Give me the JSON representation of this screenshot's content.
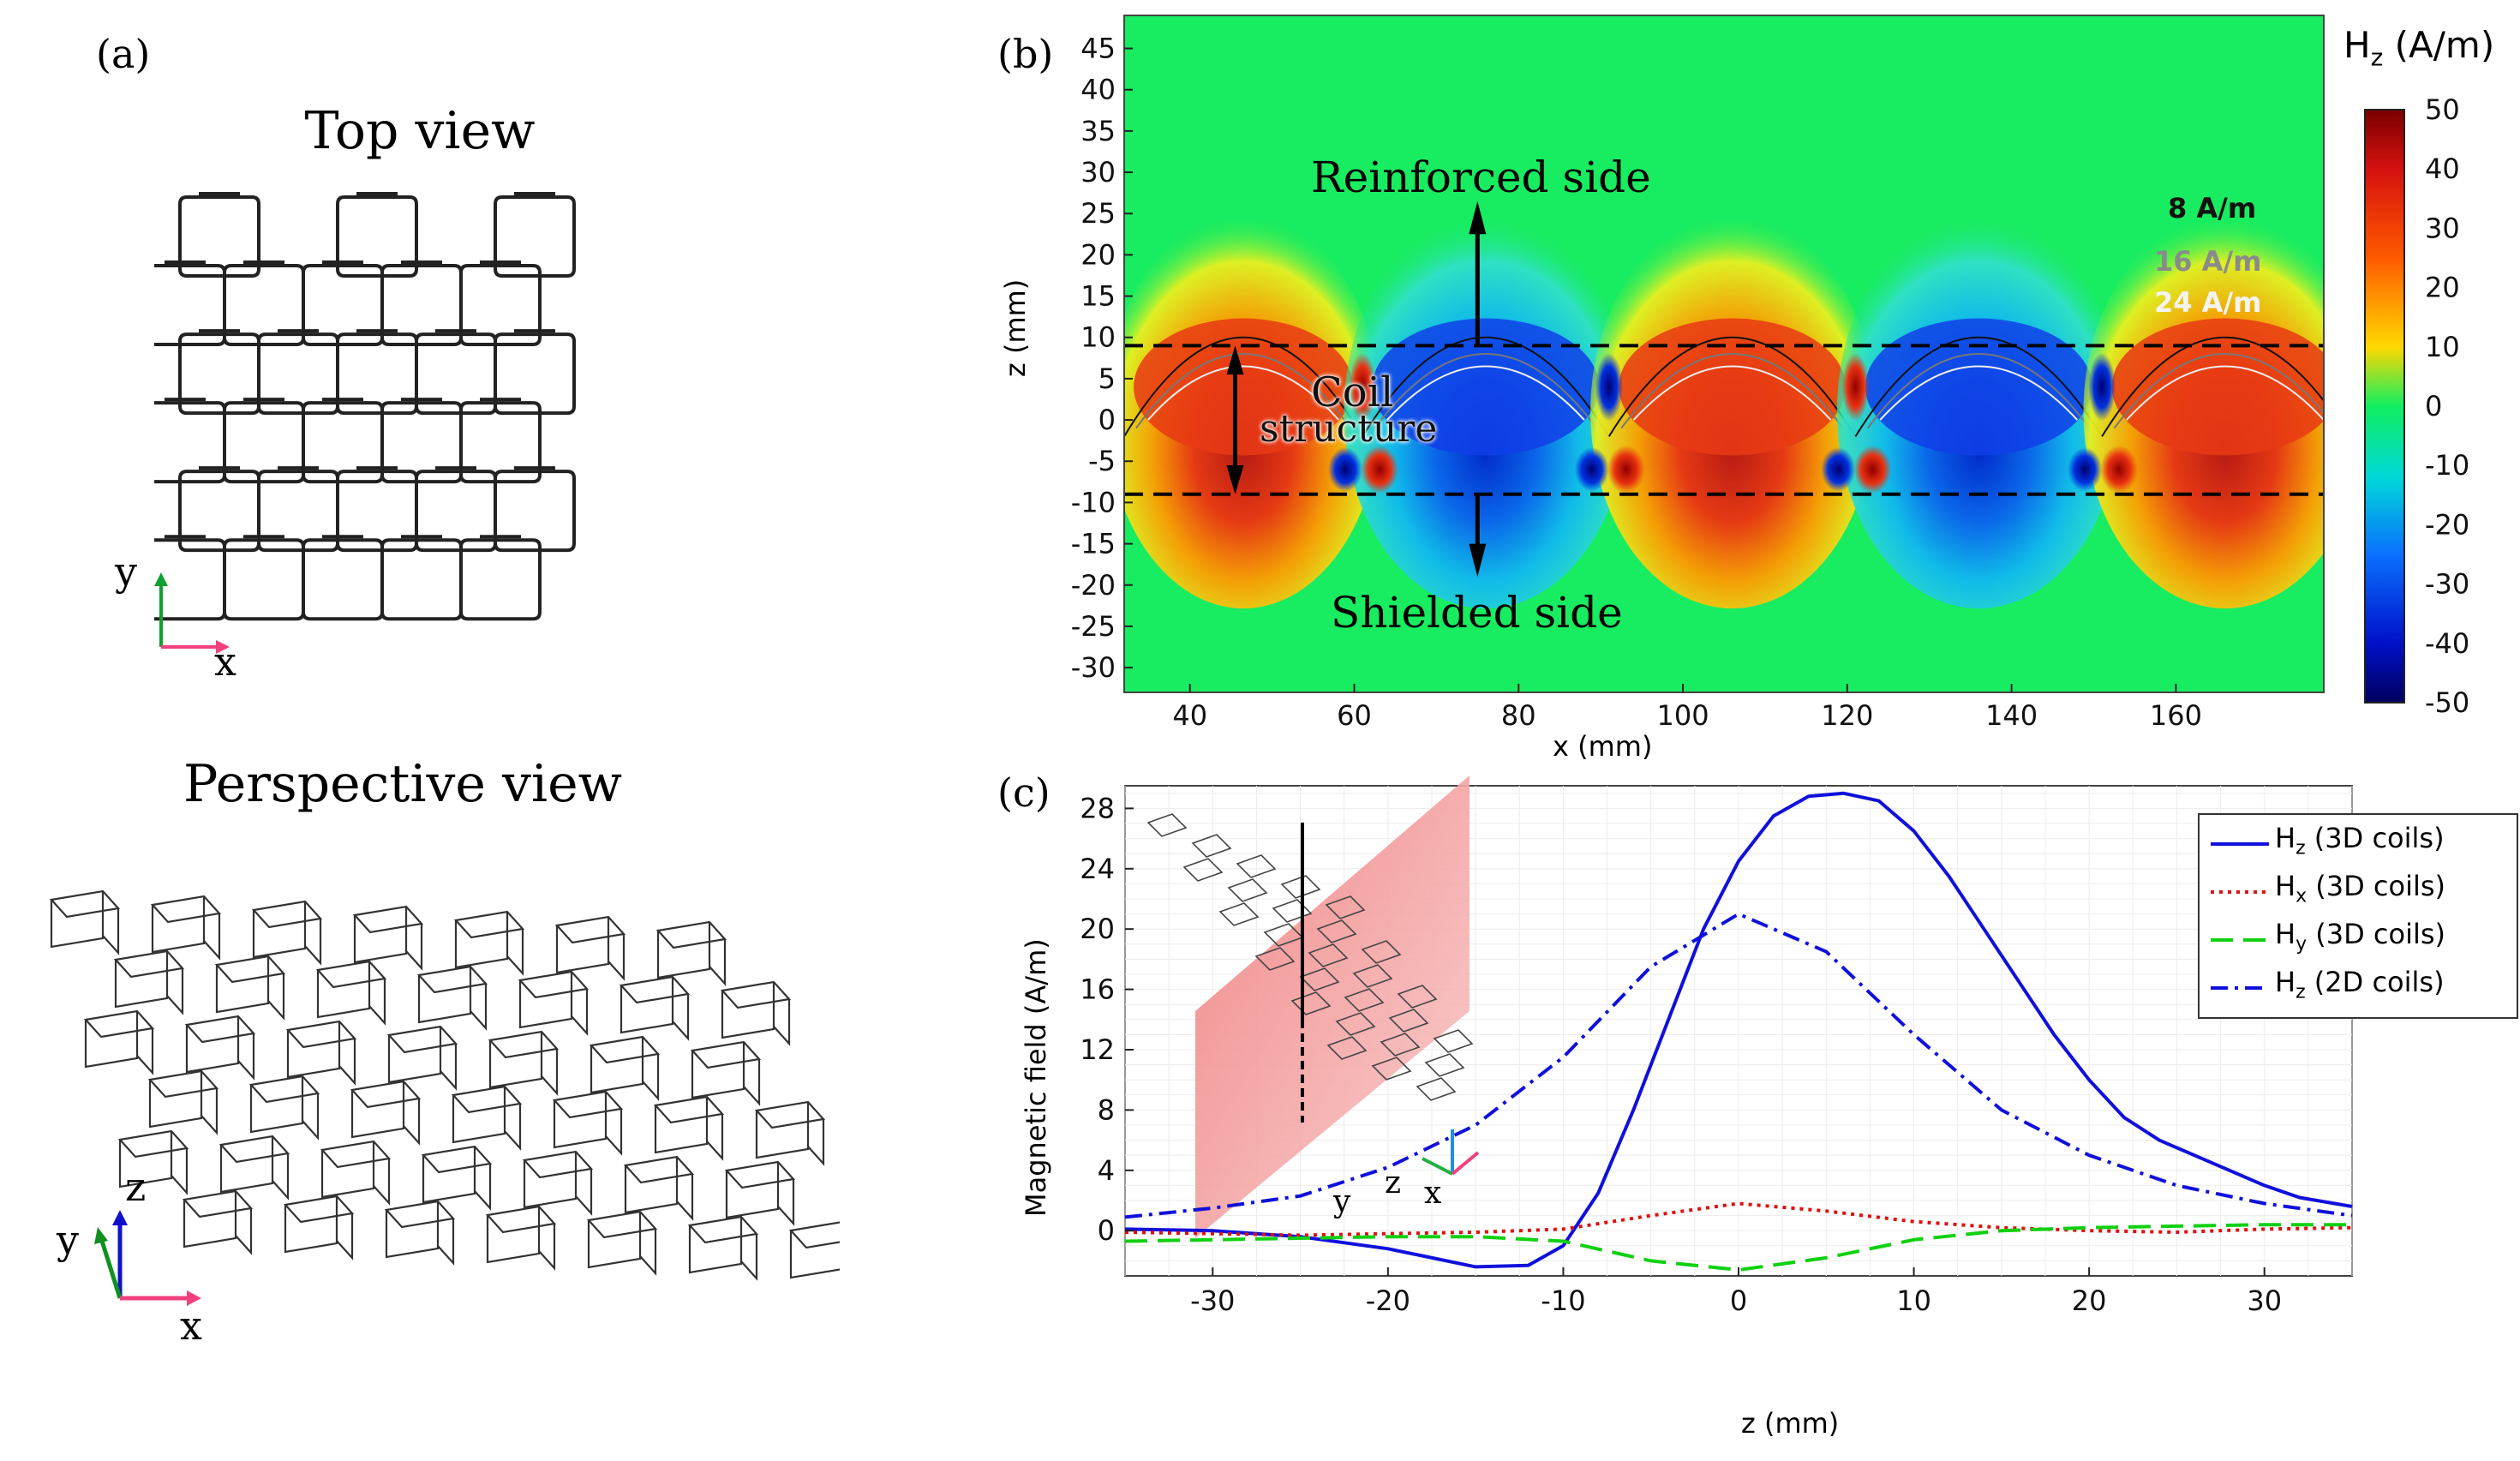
{
  "panels": {
    "a_label": "(a)",
    "b_label": "(b)",
    "c_label": "(c)",
    "top_view_title": "Top view",
    "perspective_view_title": "Perspective view",
    "axis_x": "x",
    "axis_y": "y",
    "axis_z": "z"
  },
  "colors": {
    "blue": "#1010dd",
    "red": "#e01010",
    "green": "#10d010",
    "pink": "#f04080"
  },
  "chart_data": [
    {
      "type": "heatmap",
      "title": "",
      "xlabel": "x (mm)",
      "ylabel": "z (mm)",
      "xlim": [
        32,
        178
      ],
      "ylim": [
        -33,
        49
      ],
      "xticks": [
        40,
        60,
        80,
        100,
        120,
        140,
        160
      ],
      "yticks": [
        45,
        40,
        35,
        30,
        25,
        20,
        15,
        10,
        5,
        0,
        -5,
        -10,
        -15,
        -20,
        -25,
        -30
      ],
      "colorbar": {
        "title": "H",
        "title_sub": "z",
        "title_unit": "(A/m)",
        "min": -50,
        "max": 50,
        "ticks": [
          50,
          40,
          30,
          20,
          10,
          0,
          -10,
          -20,
          -30,
          -40,
          -50
        ]
      },
      "contour_levels": [
        "8 A/m",
        "16 A/m",
        "24 A/m"
      ],
      "coil_boundaries_z": [
        9,
        -9
      ],
      "annotations": {
        "reinforced": "Reinforced side",
        "shielded": "Shielded side",
        "coil_line1": "Coil",
        "coil_line2": "structure"
      }
    },
    {
      "type": "line",
      "title": "",
      "xlabel": "z (mm)",
      "ylabel": "Magnetic field (A/m)",
      "xlim": [
        -35,
        35
      ],
      "ylim": [
        -3,
        29.5
      ],
      "xticks": [
        -30,
        -20,
        -10,
        0,
        10,
        20,
        30
      ],
      "yticks": [
        0,
        4,
        8,
        12,
        16,
        20,
        24,
        28
      ],
      "legend_position": "top-right",
      "series": [
        {
          "name": "H z (3D coils)",
          "legend_main": "H",
          "legend_sub": "z",
          "legend_rest": " (3D coils)",
          "color": "#1010dd",
          "style": "solid",
          "x": [
            -35,
            -30,
            -25,
            -20,
            -15,
            -12,
            -10,
            -8,
            -6,
            -4,
            -2,
            0,
            2,
            4,
            6,
            8,
            10,
            12,
            14,
            16,
            18,
            20,
            22,
            24,
            26,
            28,
            30,
            32,
            35
          ],
          "y": [
            0.1,
            0.0,
            -0.4,
            -1.2,
            -2.4,
            -2.3,
            -1.0,
            2.5,
            8.0,
            14.0,
            20.0,
            24.5,
            27.5,
            28.8,
            29.0,
            28.5,
            26.5,
            23.5,
            20.0,
            16.5,
            13.0,
            10.0,
            7.5,
            6.0,
            5.0,
            4.0,
            3.0,
            2.2,
            1.6
          ]
        },
        {
          "name": "H x (3D coils)",
          "legend_main": "H",
          "legend_sub": "x",
          "legend_rest": " (3D coils)",
          "color": "#e01010",
          "style": "dotted",
          "x": [
            -35,
            -30,
            -25,
            -20,
            -15,
            -10,
            -5,
            0,
            5,
            10,
            15,
            20,
            25,
            30,
            35
          ],
          "y": [
            -0.1,
            -0.2,
            -0.3,
            -0.2,
            -0.1,
            0.1,
            1.0,
            1.8,
            1.3,
            0.6,
            0.2,
            0.0,
            -0.1,
            0.1,
            0.2
          ]
        },
        {
          "name": "H y (3D coils)",
          "legend_main": "H",
          "legend_sub": "y",
          "legend_rest": " (3D coils)",
          "color": "#10d010",
          "style": "dashed",
          "x": [
            -35,
            -30,
            -25,
            -20,
            -15,
            -10,
            -5,
            0,
            5,
            10,
            15,
            20,
            25,
            30,
            35
          ],
          "y": [
            -0.7,
            -0.6,
            -0.5,
            -0.4,
            -0.4,
            -0.7,
            -2.0,
            -2.6,
            -1.8,
            -0.6,
            0.0,
            0.2,
            0.3,
            0.4,
            0.4
          ]
        },
        {
          "name": "H z (2D coils)",
          "legend_main": "H",
          "legend_sub": "z",
          "legend_rest": " (2D coils)",
          "color": "#1010dd",
          "style": "dashdot",
          "x": [
            -35,
            -30,
            -25,
            -20,
            -15,
            -10,
            -5,
            0,
            5,
            10,
            15,
            20,
            25,
            30,
            35
          ],
          "y": [
            0.9,
            1.5,
            2.3,
            4.2,
            7.0,
            11.5,
            17.5,
            21.0,
            18.5,
            13.0,
            8.0,
            5.0,
            3.0,
            1.8,
            1.0
          ]
        }
      ]
    }
  ]
}
